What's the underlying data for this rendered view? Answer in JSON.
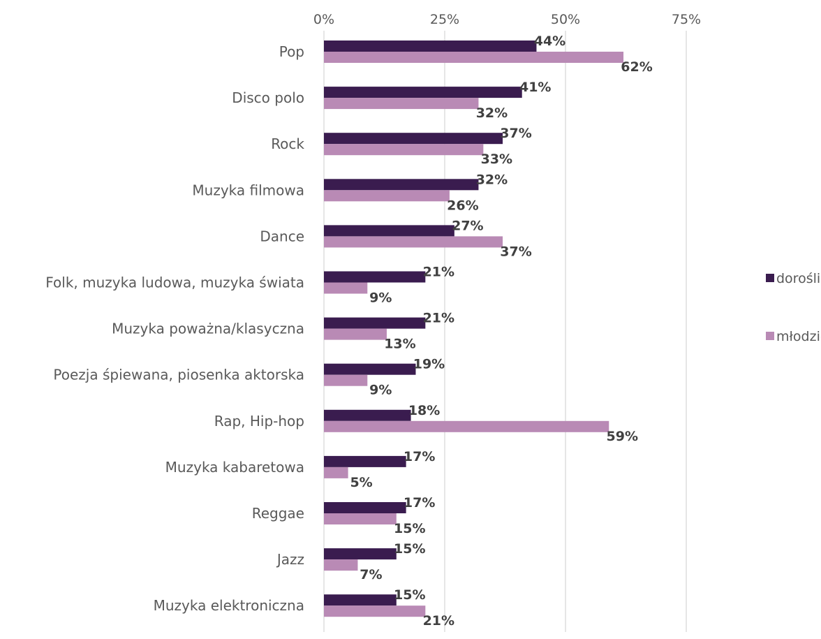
{
  "chart_data": {
    "type": "bar",
    "orientation": "horizontal",
    "categories": [
      "Pop",
      "Disco polo",
      "Rock",
      "Muzyka filmowa",
      "Dance",
      "Folk, muzyka ludowa, muzyka świata",
      "Muzyka poważna/klasyczna",
      "Poezja śpiewana, piosenka aktorska",
      "Rap, Hip-hop",
      "Muzyka kabaretowa",
      "Reggae",
      "Jazz",
      "Muzyka elektroniczna"
    ],
    "series": [
      {
        "name": "dorośli",
        "color": "#3a1c4f",
        "values": [
          44,
          41,
          37,
          32,
          27,
          21,
          21,
          19,
          18,
          17,
          17,
          15,
          15
        ],
        "labels": [
          "44%",
          "41%",
          "37%",
          "32%",
          "27%",
          "21%",
          "21%",
          "19%",
          "18%",
          "17%",
          "17%",
          "15%",
          "15%"
        ]
      },
      {
        "name": "młodzież",
        "color": "#b98ab5",
        "values": [
          62,
          32,
          33,
          26,
          37,
          9,
          13,
          9,
          59,
          5,
          15,
          7,
          21
        ],
        "labels": [
          "62%",
          "32%",
          "33%",
          "26%",
          "37%",
          "9%",
          "13%",
          "9%",
          "59%",
          "5%",
          "15%",
          "7%",
          "21%"
        ]
      }
    ],
    "xlim": [
      0,
      75
    ],
    "ticks": [
      0,
      25,
      50,
      75
    ],
    "tick_labels": [
      "0%",
      "25%",
      "50%",
      "75%"
    ],
    "x_axis_position": "top",
    "grid": true,
    "legend_position": "right"
  }
}
